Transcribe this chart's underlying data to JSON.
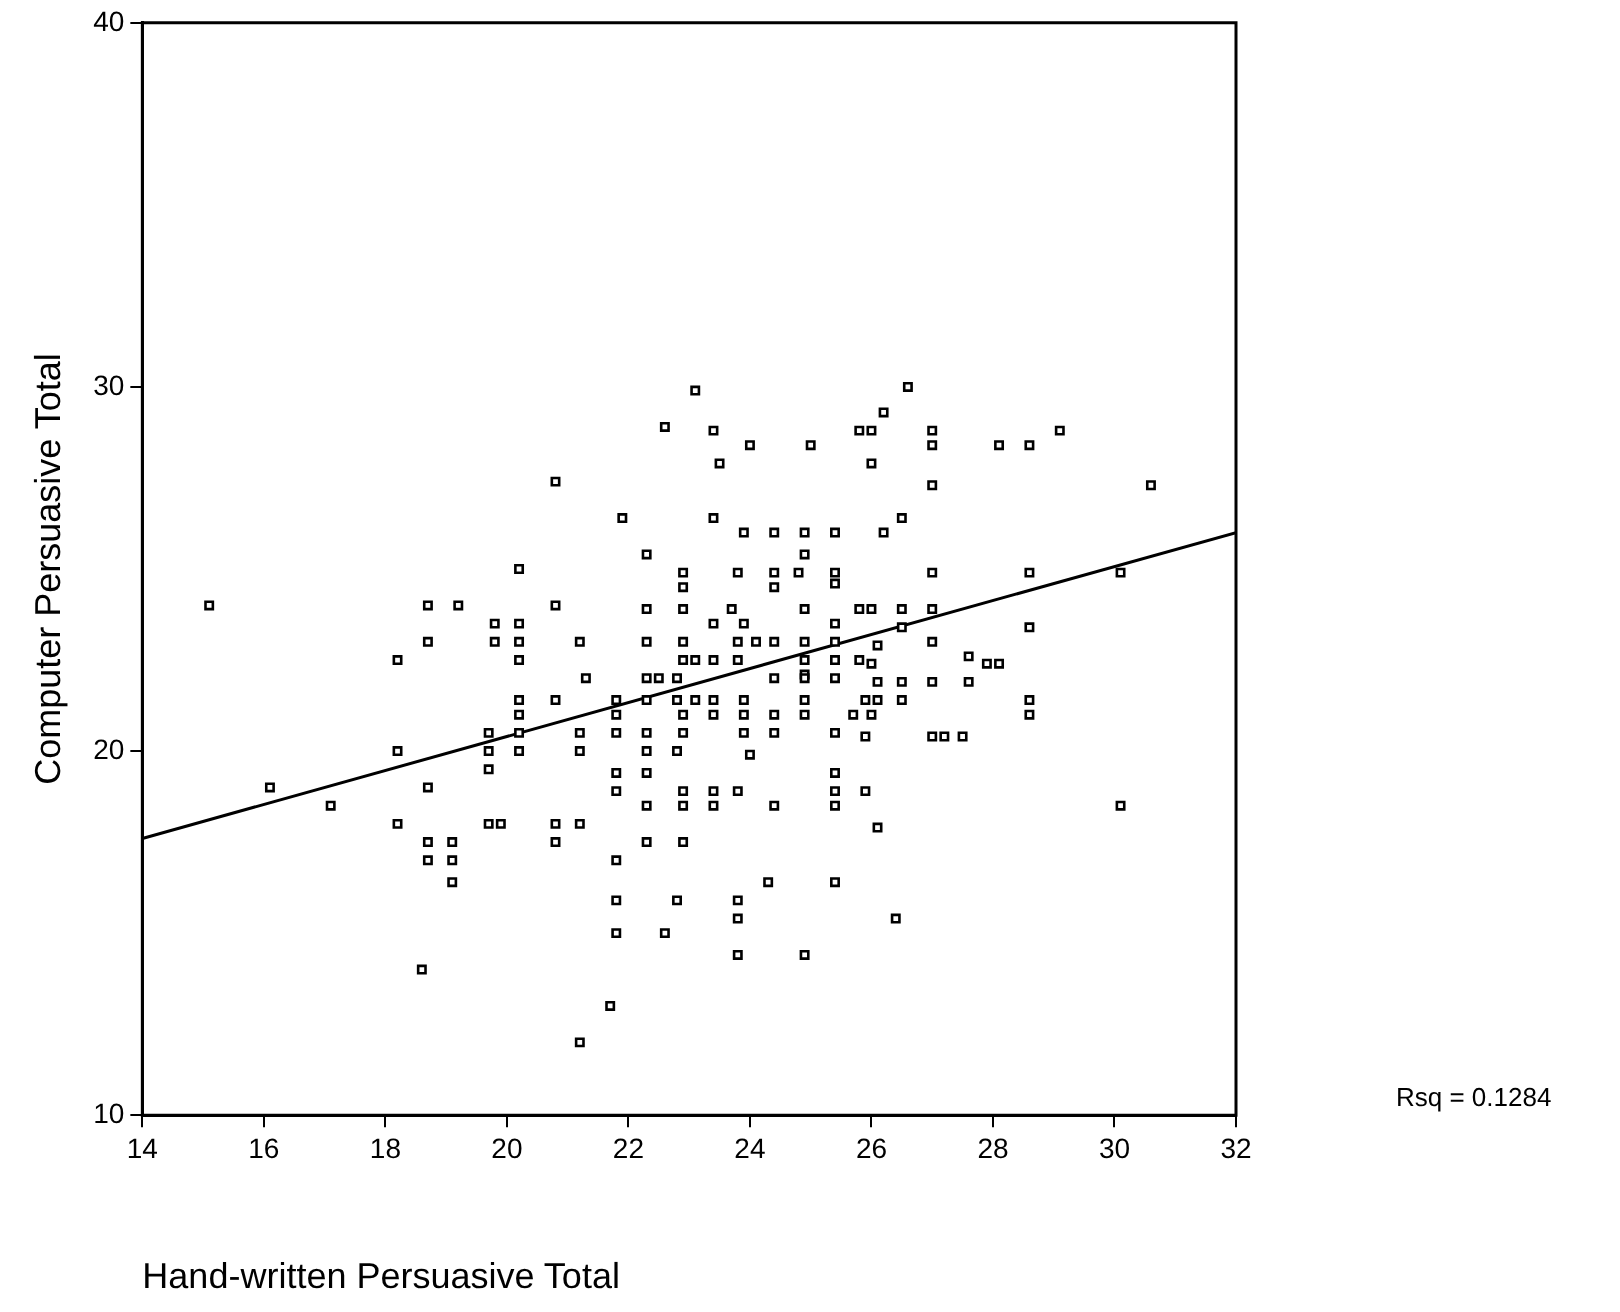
{
  "chart_data": {
    "type": "scatter",
    "xlabel": "Hand-written Persuasive Total",
    "ylabel": "Computer Persuasive Total",
    "annotations": [
      "Rsq = 0.1284"
    ],
    "xlim": [
      14,
      32
    ],
    "xticks": [
      14,
      16,
      18,
      20,
      22,
      24,
      26,
      28,
      30,
      32
    ],
    "ylim": [
      10,
      40
    ],
    "yticks": [
      10,
      20,
      30,
      40
    ],
    "grid": false,
    "legend": false,
    "marker": "square",
    "series": [
      {
        "color": "#000000",
        "x": [
          15.1,
          16.1,
          17.1,
          18.2,
          18.2,
          18.2,
          18.7,
          18.7,
          18.7,
          18.7,
          18.7,
          18.6,
          19.2,
          19.1,
          19.1,
          19.1,
          19.8,
          19.8,
          19.7,
          19.7,
          19.7,
          19.7,
          19.9,
          20.2,
          20.2,
          20.2,
          20.2,
          20.2,
          20.2,
          20.2,
          20.2,
          20.8,
          20.8,
          20.8,
          20.8,
          20.8,
          21.2,
          21.3,
          21.2,
          21.2,
          21.2,
          21.2,
          21.9,
          21.8,
          21.8,
          21.8,
          21.8,
          21.8,
          21.8,
          21.8,
          21.8,
          21.7,
          22.3,
          22.3,
          22.3,
          22.3,
          22.5,
          22.3,
          22.3,
          22.3,
          22.3,
          22.3,
          22.3,
          22.6,
          22.6,
          22.9,
          22.9,
          22.9,
          22.9,
          22.9,
          22.8,
          22.8,
          22.9,
          22.9,
          22.8,
          22.9,
          22.9,
          22.9,
          22.8,
          23.1,
          23.4,
          23.4,
          23.1,
          23.1,
          23.4,
          23.4,
          23.4,
          23.4,
          23.4,
          23.4,
          23.5,
          23.8,
          23.7,
          23.9,
          23.8,
          23.8,
          23.9,
          23.9,
          23.9,
          24,
          23.8,
          23.8,
          23.8,
          23.8,
          24,
          23.9,
          24.1,
          24.4,
          24.4,
          24.4,
          24.4,
          24.4,
          24.4,
          24.4,
          24.4,
          24.3,
          24.9,
          24.9,
          24.8,
          24.9,
          24.9,
          24.9,
          24.9,
          24.9,
          24.9,
          24.9,
          24.9,
          25,
          25.4,
          25.4,
          25.4,
          25.4,
          25.4,
          25.4,
          25.4,
          25.4,
          25.4,
          25.4,
          25.4,
          25.4,
          25.7,
          25.8,
          26,
          25.8,
          25.8,
          26.6,
          26.2,
          26,
          26.5,
          26.2,
          26,
          26.5,
          26.5,
          26.1,
          26,
          26.1,
          26.5,
          25.9,
          26.1,
          26.5,
          26,
          25.9,
          25.9,
          26.1,
          26.4,
          27,
          27,
          27,
          27,
          27,
          27,
          27,
          27,
          27.2,
          27.5,
          27.6,
          27.6,
          27.9,
          28.1,
          28.1,
          28.6,
          29.1,
          28.6,
          28.6,
          28.6,
          28.6,
          30.6,
          30.1,
          30.1
        ],
        "values": [
          24,
          19,
          18.5,
          22.5,
          20,
          18,
          24,
          23,
          19,
          17.5,
          17,
          14,
          24,
          17.5,
          17,
          16.4,
          23.5,
          23,
          20.5,
          20,
          19.5,
          18,
          18,
          25,
          23.5,
          23,
          22.5,
          21.4,
          21,
          20.5,
          20,
          27.4,
          24,
          21.4,
          18,
          17.5,
          23,
          22,
          20.5,
          20,
          18,
          12,
          26.4,
          21.4,
          21,
          20.5,
          19.4,
          18.9,
          17,
          15.9,
          15,
          13,
          25.4,
          23.9,
          23,
          22,
          22,
          21.4,
          20.5,
          20,
          19.4,
          18.5,
          17.5,
          15,
          28.9,
          24.9,
          24.5,
          23.9,
          23,
          22.5,
          22,
          21.4,
          21,
          20.5,
          20,
          18.9,
          18.5,
          17.5,
          15.9,
          29.9,
          26.4,
          23.5,
          22.5,
          21.4,
          22.5,
          21.4,
          21,
          18.9,
          18.5,
          28.8,
          27.9,
          24.9,
          23.9,
          23.5,
          23,
          22.5,
          21.4,
          21,
          20.5,
          19.9,
          18.9,
          15.9,
          15.4,
          14.4,
          28.4,
          26,
          23,
          26,
          24.9,
          24.5,
          23,
          22,
          21,
          20.5,
          18.5,
          16.4,
          26,
          25.4,
          24.9,
          23.9,
          23,
          22.5,
          22.1,
          22,
          21.4,
          21,
          14.4,
          28.4,
          26,
          24.9,
          24.6,
          23.5,
          23,
          22.5,
          22,
          20.5,
          19.4,
          18.9,
          18.5,
          16.4,
          21,
          28.8,
          27.9,
          23.9,
          22.5,
          30,
          29.3,
          28.8,
          26.4,
          26,
          23.9,
          23.9,
          23.4,
          22.9,
          22.4,
          21.9,
          21.9,
          21.4,
          21.4,
          21.4,
          21,
          20.4,
          18.9,
          17.9,
          15.4,
          28.8,
          28.4,
          27.3,
          24.9,
          23.9,
          23,
          21.9,
          20.4,
          20.4,
          20.4,
          22.6,
          21.9,
          22.4,
          22.4,
          28.4,
          28.4,
          28.8,
          24.9,
          23.4,
          21.4,
          21,
          27.3,
          24.9,
          18.5
        ]
      },
      {
        "type": "line",
        "color": "#000000",
        "marker": "none",
        "x": [
          14,
          32
        ],
        "values": [
          17.6,
          26
        ]
      }
    ]
  }
}
